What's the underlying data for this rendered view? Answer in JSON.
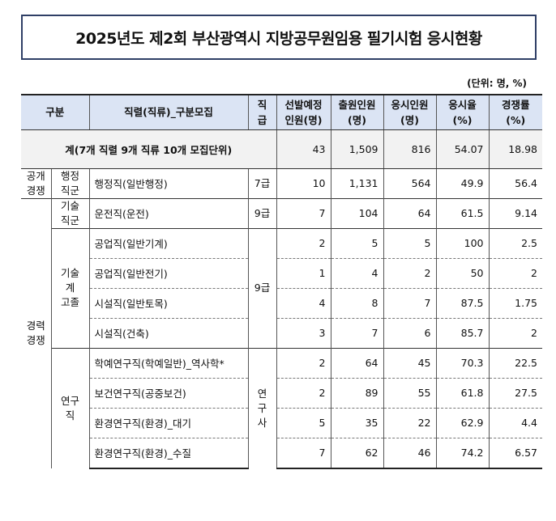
{
  "title": "2025년도 제2회 부산광역시 지방공무원임용 필기시험 응시현황",
  "unit": "(단위: 명, %)",
  "headers": {
    "category": "구분",
    "series": "직렬(직류)_구분모집",
    "grade": "직급",
    "planned": [
      "선발예정",
      "인원(명)"
    ],
    "applied": [
      "출원인원",
      "(명)"
    ],
    "attended": [
      "응시인원",
      "(명)"
    ],
    "rate": [
      "응시율",
      "(%)"
    ],
    "competition": [
      "경쟁률",
      "(%)"
    ]
  },
  "total": {
    "label": "계(7개 직렬 9개 직류 10개 모집단위)",
    "planned": "43",
    "applied": "1,509",
    "attended": "816",
    "rate": "54.07",
    "competition": "18.98"
  },
  "groups": {
    "open": [
      "공개",
      "경쟁"
    ],
    "career": [
      "경력",
      "경쟁"
    ],
    "admin": [
      "행정",
      "직군"
    ],
    "tech": [
      "기술",
      "직군"
    ],
    "techhs": [
      "기술계",
      "고졸"
    ],
    "research": "연구직",
    "grade7": "7급",
    "grade9a": "9급",
    "grade9b": "9급",
    "researcher": [
      "연구",
      "사"
    ]
  },
  "rows": [
    {
      "name": "행정직(일반행정)",
      "planned": "10",
      "applied": "1,131",
      "attended": "564",
      "rate": "49.9",
      "competition": "56.4"
    },
    {
      "name": "운전직(운전)",
      "planned": "7",
      "applied": "104",
      "attended": "64",
      "rate": "61.5",
      "competition": "9.14"
    },
    {
      "name": "공업직(일반기계)",
      "planned": "2",
      "applied": "5",
      "attended": "5",
      "rate": "100",
      "competition": "2.5"
    },
    {
      "name": "공업직(일반전기)",
      "planned": "1",
      "applied": "4",
      "attended": "2",
      "rate": "50",
      "competition": "2"
    },
    {
      "name": "시설직(일반토목)",
      "planned": "4",
      "applied": "8",
      "attended": "7",
      "rate": "87.5",
      "competition": "1.75"
    },
    {
      "name": "시설직(건축)",
      "planned": "3",
      "applied": "7",
      "attended": "6",
      "rate": "85.7",
      "competition": "2"
    },
    {
      "name": "학예연구직(학예일반)_역사학*",
      "planned": "2",
      "applied": "64",
      "attended": "45",
      "rate": "70.3",
      "competition": "22.5"
    },
    {
      "name": "보건연구직(공중보건)",
      "planned": "2",
      "applied": "89",
      "attended": "55",
      "rate": "61.8",
      "competition": "27.5"
    },
    {
      "name": "환경연구직(환경)_대기",
      "planned": "5",
      "applied": "35",
      "attended": "22",
      "rate": "62.9",
      "competition": "4.4"
    },
    {
      "name": "환경연구직(환경)_수질",
      "planned": "7",
      "applied": "62",
      "attended": "46",
      "rate": "74.2",
      "competition": "6.57"
    }
  ]
}
